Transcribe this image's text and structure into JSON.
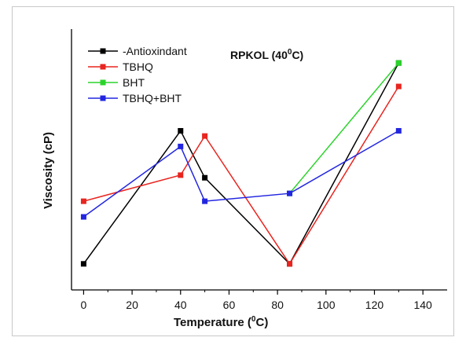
{
  "chart_data": {
    "type": "line",
    "title": "RPKOL (40",
    "title_sup": "0",
    "title_end": "C)",
    "xlabel": "Temperature (",
    "xlabel_sup": "0",
    "xlabel_end": "C)",
    "ylabel": "Viscosity (cP)",
    "xlim": [
      -5,
      150
    ],
    "ylim": [
      0,
      1
    ],
    "xticks": [
      0,
      20,
      40,
      60,
      80,
      100,
      120,
      140
    ],
    "y_tick_labels": false,
    "grid": false,
    "legend_position": "top-left",
    "series": [
      {
        "name": "-Antioxindant",
        "color": "#000000",
        "x": [
          0,
          40,
          50,
          85,
          130
        ],
        "y": [
          0.1,
          0.61,
          0.43,
          0.1,
          0.87
        ]
      },
      {
        "name": "TBHQ",
        "color": "#e8251f",
        "x": [
          0,
          40,
          50,
          85,
          130
        ],
        "y": [
          0.34,
          0.44,
          0.59,
          0.1,
          0.78
        ]
      },
      {
        "name": "BHT",
        "color": "#2ad32a",
        "x": [
          85,
          130
        ],
        "y": [
          0.37,
          0.87
        ]
      },
      {
        "name": "TBHQ+BHT",
        "color": "#2226e0",
        "x": [
          0,
          40,
          50,
          85,
          130
        ],
        "y": [
          0.28,
          0.55,
          0.34,
          0.37,
          0.61
        ]
      }
    ]
  }
}
